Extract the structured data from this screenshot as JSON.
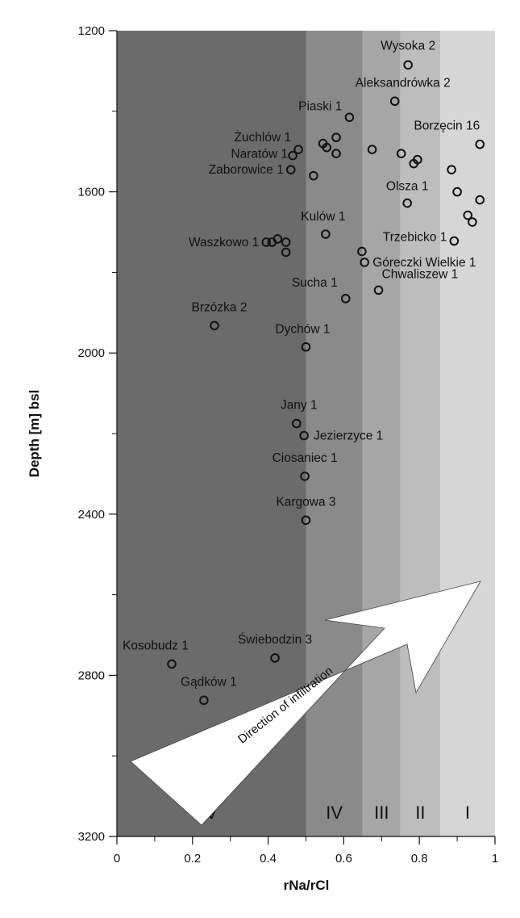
{
  "chart_data": {
    "type": "scatter",
    "xlabel": "rNa/rCl",
    "ylabel": "Depth [m] bsl",
    "xlim": [
      0,
      1
    ],
    "ylim": [
      1200,
      3200
    ],
    "y_inverted": true,
    "x_ticks": [
      "0",
      "0.2",
      "0.4",
      "0.6",
      "0.8",
      "1"
    ],
    "y_ticks": [
      "1200",
      "1600",
      "2000",
      "2400",
      "2800",
      "3200"
    ],
    "grid": false,
    "zones": [
      {
        "label": "V",
        "x0": 0,
        "x1": 0.5,
        "color": "#6b6b6b"
      },
      {
        "label": "IV",
        "x0": 0.5,
        "x1": 0.65,
        "color": "#8a8a8a"
      },
      {
        "label": "III",
        "x0": 0.65,
        "x1": 0.75,
        "color": "#a6a6a6"
      },
      {
        "label": "II",
        "x0": 0.75,
        "x1": 0.855,
        "color": "#bdbdbd"
      },
      {
        "label": "I",
        "x0": 0.855,
        "x1": 1.0,
        "color": "#d6d6d6"
      }
    ],
    "arrow_label": "Direction of infiltration",
    "points": [
      {
        "x": 0.77,
        "y": 1285,
        "label": "Wysoka 2"
      },
      {
        "x": 0.735,
        "y": 1375,
        "label": "Aleksandrówka 2"
      },
      {
        "x": 0.615,
        "y": 1415,
        "label": "Piaski 1"
      },
      {
        "x": 0.48,
        "y": 1495,
        "label": "Żuchlów 1"
      },
      {
        "x": 0.465,
        "y": 1510,
        "label": "Naratów 1"
      },
      {
        "x": 0.46,
        "y": 1545,
        "label": "Zaborowice 1"
      },
      {
        "x": 0.545,
        "y": 1480,
        "label": ""
      },
      {
        "x": 0.555,
        "y": 1490,
        "label": ""
      },
      {
        "x": 0.58,
        "y": 1465,
        "label": ""
      },
      {
        "x": 0.58,
        "y": 1505,
        "label": ""
      },
      {
        "x": 0.52,
        "y": 1560,
        "label": ""
      },
      {
        "x": 0.675,
        "y": 1495,
        "label": ""
      },
      {
        "x": 0.752,
        "y": 1505,
        "label": ""
      },
      {
        "x": 0.795,
        "y": 1520,
        "label": ""
      },
      {
        "x": 0.785,
        "y": 1530,
        "label": ""
      },
      {
        "x": 0.96,
        "y": 1482,
        "label": "Borzęcin 16"
      },
      {
        "x": 0.885,
        "y": 1545,
        "label": ""
      },
      {
        "x": 0.9,
        "y": 1600,
        "label": ""
      },
      {
        "x": 0.96,
        "y": 1620,
        "label": ""
      },
      {
        "x": 0.768,
        "y": 1628,
        "label": "Olsza 1"
      },
      {
        "x": 0.928,
        "y": 1658,
        "label": ""
      },
      {
        "x": 0.94,
        "y": 1675,
        "label": ""
      },
      {
        "x": 0.892,
        "y": 1722,
        "label": "Trzebicko 1"
      },
      {
        "x": 0.552,
        "y": 1705,
        "label": "Kulów 1"
      },
      {
        "x": 0.395,
        "y": 1725,
        "label": "Waszkowo 1"
      },
      {
        "x": 0.41,
        "y": 1725,
        "label": ""
      },
      {
        "x": 0.425,
        "y": 1717,
        "label": ""
      },
      {
        "x": 0.447,
        "y": 1725,
        "label": ""
      },
      {
        "x": 0.447,
        "y": 1750,
        "label": ""
      },
      {
        "x": 0.648,
        "y": 1748,
        "label": ""
      },
      {
        "x": 0.655,
        "y": 1775,
        "label": "Góreczki Wielkie 1"
      },
      {
        "x": 0.692,
        "y": 1844,
        "label": "Chwaliszew 1"
      },
      {
        "x": 0.605,
        "y": 1865,
        "label": "Sucha 1"
      },
      {
        "x": 0.258,
        "y": 1932,
        "label": "Brzózka 2"
      },
      {
        "x": 0.5,
        "y": 1985,
        "label": "Dychów 1"
      },
      {
        "x": 0.475,
        "y": 2175,
        "label": "Jany 1"
      },
      {
        "x": 0.495,
        "y": 2205,
        "label": "Jezierzyce 1"
      },
      {
        "x": 0.497,
        "y": 2306,
        "label": "Ciosaniec 1"
      },
      {
        "x": 0.5,
        "y": 2415,
        "label": "Kargowa 3"
      },
      {
        "x": 0.418,
        "y": 2757,
        "label": "Świebodzin 3"
      },
      {
        "x": 0.145,
        "y": 2772,
        "label": "Kosobudz 1"
      },
      {
        "x": 0.23,
        "y": 2862,
        "label": "Gądków 1"
      }
    ]
  }
}
